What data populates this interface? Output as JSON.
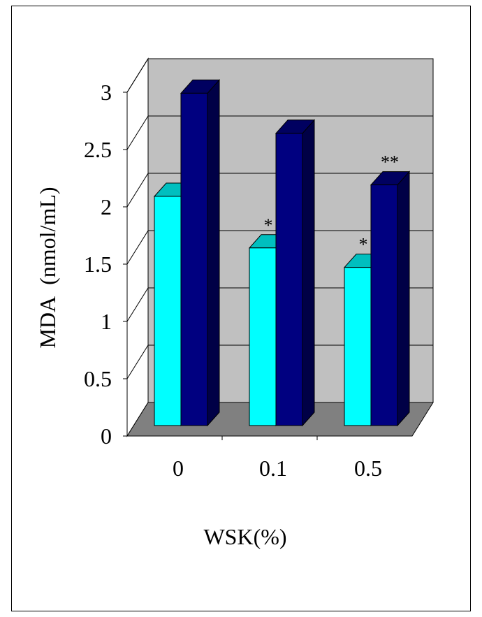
{
  "chart_data": {
    "type": "bar",
    "title": "",
    "xlabel": "WSK(%)",
    "ylabel": "MDA  (nmol/mL)",
    "categories": [
      "0",
      "0.1",
      "0.5"
    ],
    "yticks": [
      "0",
      "0.5",
      "1",
      "1.5",
      "2",
      "2.5",
      "3"
    ],
    "ylim": [
      0,
      3
    ],
    "grid": true,
    "legend": "none",
    "series": [
      {
        "values": [
          2.0,
          1.55,
          1.38
        ],
        "color": "#00ffff",
        "annotations": [
          "",
          "*",
          "*"
        ]
      },
      {
        "values": [
          2.9,
          2.55,
          2.1
        ],
        "color": "#000080",
        "annotations": [
          "",
          "",
          "**"
        ]
      }
    ]
  }
}
